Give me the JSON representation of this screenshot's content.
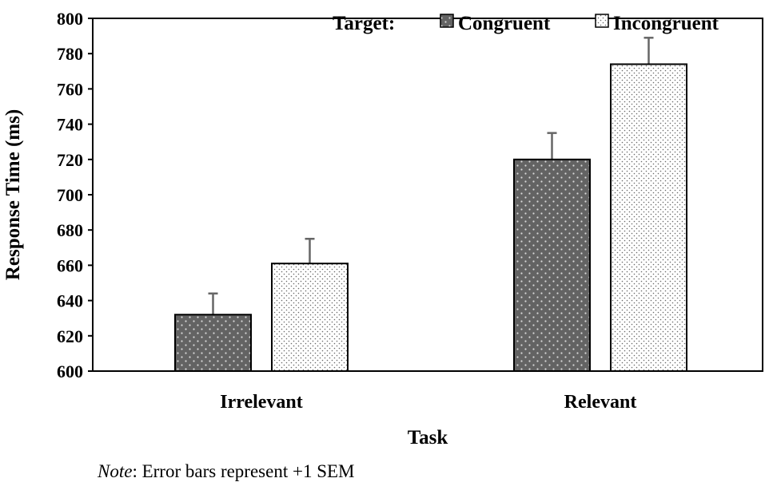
{
  "chart_data": {
    "type": "bar",
    "categories": [
      "Irrelevant",
      "Relevant"
    ],
    "series": [
      {
        "name": "Congruent",
        "values": [
          632,
          720
        ],
        "errors": [
          12,
          15
        ],
        "color": "#636363",
        "pattern": "dark-dotted"
      },
      {
        "name": "Incongruent",
        "values": [
          661,
          774
        ],
        "errors": [
          14,
          15
        ],
        "color": "#ffffff",
        "pattern": "light-dotted"
      }
    ],
    "xlabel": "Task",
    "ylabel": "Response Time (ms)",
    "ylim": [
      600,
      800
    ],
    "yticks": [
      "600",
      "620",
      "640",
      "660",
      "680",
      "700",
      "720",
      "740",
      "760",
      "780",
      "800"
    ],
    "legend_title": "Target:",
    "legend_position": "top-right",
    "grid": false
  },
  "note": {
    "label": "Note",
    "text": ": Error bars represent +1 SEM"
  }
}
